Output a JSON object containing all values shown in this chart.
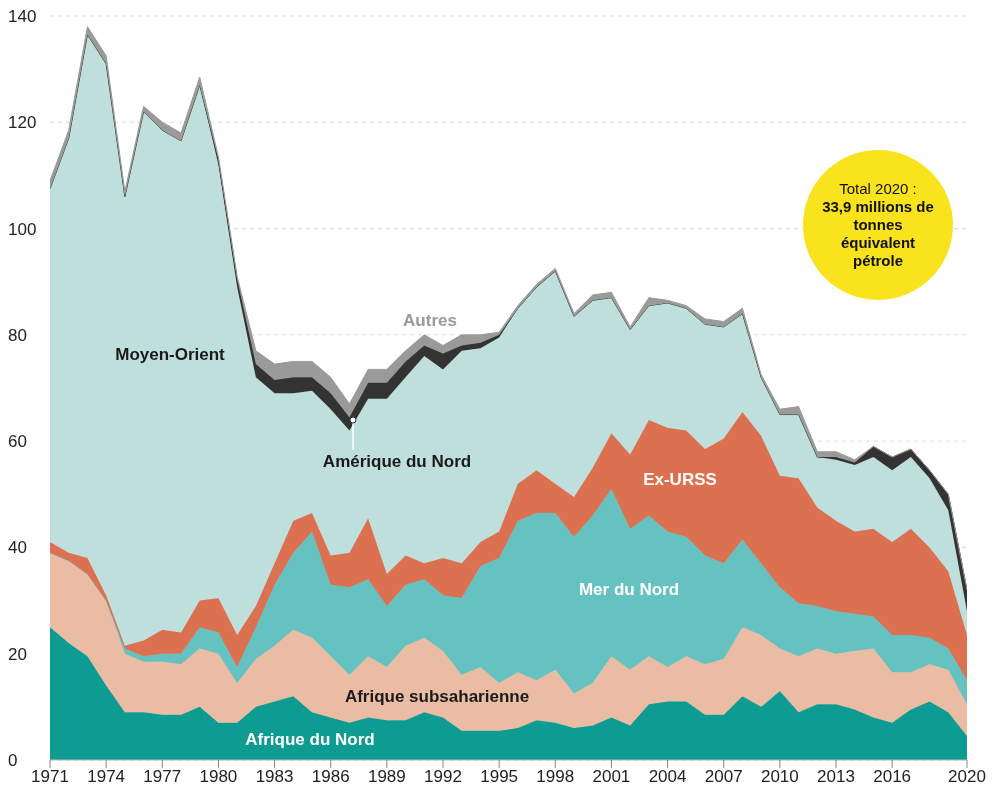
{
  "chart_data": {
    "type": "area",
    "stacked": true,
    "grid": "y",
    "x": [
      1971,
      1972,
      1973,
      1974,
      1975,
      1976,
      1977,
      1978,
      1979,
      1980,
      1981,
      1982,
      1983,
      1984,
      1985,
      1986,
      1987,
      1988,
      1989,
      1990,
      1991,
      1992,
      1993,
      1994,
      1995,
      1996,
      1997,
      1998,
      1999,
      2000,
      2001,
      2002,
      2003,
      2004,
      2005,
      2006,
      2007,
      2008,
      2009,
      2010,
      2011,
      2012,
      2013,
      2014,
      2015,
      2016,
      2017,
      2018,
      2019,
      2020
    ],
    "xlim": [
      1971,
      2020
    ],
    "xticks": [
      1971,
      1974,
      1977,
      1980,
      1983,
      1986,
      1989,
      1992,
      1995,
      1998,
      2001,
      2004,
      2007,
      2010,
      2013,
      2016,
      2020
    ],
    "ylim": [
      0,
      140
    ],
    "yticks": [
      0,
      20,
      40,
      60,
      80,
      100,
      120,
      140
    ],
    "series": [
      {
        "name": "Afrique du Nord",
        "color": "#0e9c92",
        "values": [
          25,
          22,
          19.5,
          14,
          9,
          9,
          8.5,
          8.5,
          10,
          7,
          7,
          10,
          11,
          12,
          9,
          8,
          7,
          8,
          7.5,
          7.5,
          9,
          8,
          5.5,
          5.5,
          5.5,
          6,
          7.5,
          7,
          6,
          6.5,
          8,
          6.5,
          10.5,
          11,
          11,
          8.5,
          8.5,
          12,
          10,
          13,
          9,
          10.5,
          10.5,
          9.5,
          8,
          7,
          9.5,
          11,
          9,
          4.5
        ]
      },
      {
        "name": "Afrique subsaharienne",
        "color": "#ebbca4",
        "values": [
          14,
          15.5,
          15.5,
          16,
          11,
          9.5,
          10,
          9.5,
          11,
          13,
          7.5,
          9,
          10.5,
          12.5,
          14,
          11.5,
          9,
          11.5,
          10,
          14,
          14,
          12.5,
          10.5,
          12,
          9,
          10.5,
          7.5,
          10,
          6.5,
          8,
          11.5,
          10.5,
          9,
          6.5,
          8.5,
          9.5,
          10.5,
          13,
          13.5,
          8,
          10.5,
          10.5,
          9.5,
          11,
          13,
          9.5,
          7,
          7,
          8,
          6
        ]
      },
      {
        "name": "Mer du Nord",
        "color": "#66c2c0",
        "values": [
          0,
          0,
          0,
          0,
          1,
          1,
          1.5,
          2,
          4,
          4,
          3,
          6,
          11.5,
          14.5,
          20,
          13.5,
          16.5,
          14.5,
          11.5,
          11.5,
          11,
          10.5,
          14.5,
          19,
          23.5,
          28.5,
          31.5,
          29.5,
          29.5,
          31.5,
          31.5,
          26.5,
          26.5,
          25.5,
          22.5,
          20.5,
          18,
          16.5,
          13.5,
          11.5,
          10,
          8,
          8,
          7,
          6,
          7,
          7,
          5,
          4,
          4.5
        ]
      },
      {
        "name": "Ex-URSS",
        "color": "#dc7152",
        "values": [
          2,
          1.5,
          3,
          1,
          0.5,
          3,
          4.5,
          4,
          5,
          6.5,
          6,
          4,
          4,
          6,
          3.5,
          5.5,
          6.5,
          11.5,
          6,
          5.5,
          3,
          7,
          6.5,
          4.5,
          5,
          7,
          8,
          5.5,
          7.5,
          9,
          10.5,
          14,
          18,
          19.5,
          20,
          20,
          23.5,
          24,
          24,
          21,
          23.5,
          18.5,
          17,
          15.5,
          16.5,
          17.5,
          20,
          17,
          14.5,
          8.5
        ]
      },
      {
        "name": "Moyen-Orient",
        "color": "#bfdfdc",
        "values": [
          66.5,
          78,
          98.5,
          100,
          84.5,
          99.5,
          94,
          92.5,
          97,
          81.5,
          65.5,
          43,
          32,
          24,
          23,
          27.5,
          23,
          22.5,
          33,
          33.5,
          39,
          35.5,
          40,
          36.5,
          36.5,
          33,
          34.5,
          40,
          34,
          31.5,
          25.5,
          23.5,
          21.5,
          23.5,
          23,
          23.5,
          21,
          18.5,
          11,
          11.5,
          12,
          9.5,
          11.5,
          12.5,
          13.5,
          13.5,
          13.5,
          13,
          11.5,
          4.5
        ]
      },
      {
        "name": "Amérique du Nord",
        "color": "#333333",
        "values": [
          0,
          0,
          0,
          0,
          0,
          0,
          0,
          0,
          0,
          1,
          1.5,
          2.5,
          2.5,
          3,
          2.5,
          3,
          2.5,
          3,
          3,
          3,
          2,
          3,
          1,
          1,
          0.5,
          0,
          0,
          0,
          0,
          0,
          0,
          0,
          0,
          0,
          0,
          0,
          0,
          0,
          0,
          0,
          0,
          0,
          0.5,
          0.5,
          2,
          2.5,
          1.5,
          1.5,
          3,
          4
        ]
      },
      {
        "name": "Autres",
        "color": "#9a9a9a",
        "values": [
          1.5,
          1.5,
          1.5,
          1.5,
          1,
          1,
          1.5,
          1.5,
          1.5,
          0.5,
          0.5,
          2.5,
          3,
          3,
          3,
          3,
          2.5,
          2.5,
          2.5,
          2,
          2,
          1.5,
          2,
          1.5,
          0.5,
          0.5,
          0.5,
          0.5,
          0.5,
          1,
          1,
          0.5,
          1.5,
          0.5,
          0.5,
          1,
          1,
          1,
          0.5,
          1,
          1.5,
          1,
          1,
          0.5,
          0,
          0,
          0,
          0,
          0,
          0
        ]
      }
    ],
    "annotations": [
      "Total 2020 :",
      "33,9 millions de tonnes équivalent pétrole"
    ]
  }
}
